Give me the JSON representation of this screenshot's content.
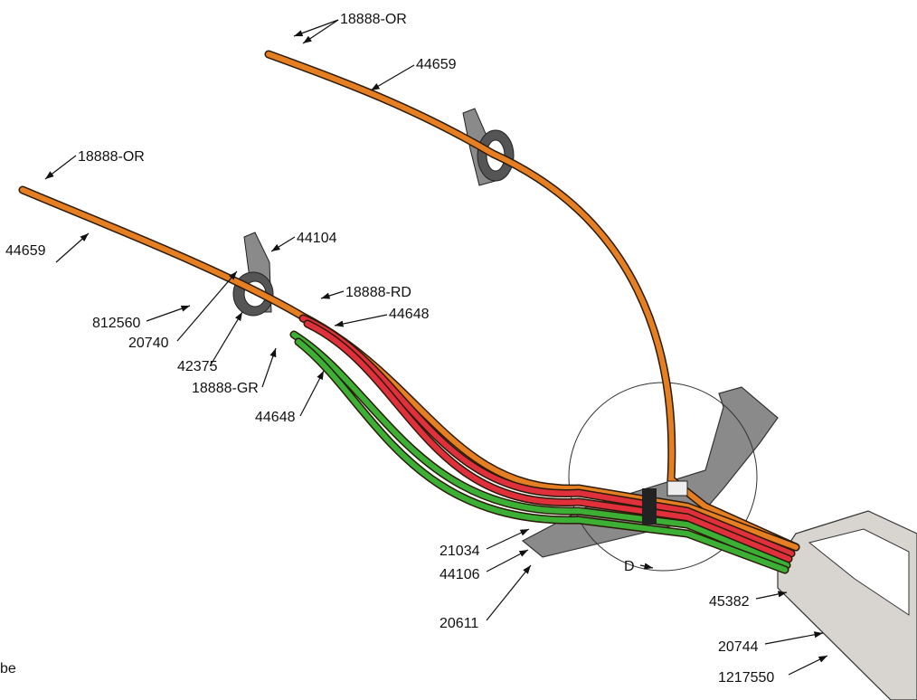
{
  "labels": [
    {
      "text": "18888-OR"
    },
    {
      "text": "44659"
    },
    {
      "text": "18888-OR"
    },
    {
      "text": "44659"
    },
    {
      "text": "44104"
    },
    {
      "text": "18888-RD"
    },
    {
      "text": "44648"
    },
    {
      "text": "812560"
    },
    {
      "text": "20740"
    },
    {
      "text": "42375"
    },
    {
      "text": "18888-GR"
    },
    {
      "text": "44648"
    },
    {
      "text": "21034"
    },
    {
      "text": "44106"
    },
    {
      "text": "20611"
    },
    {
      "text": "D"
    },
    {
      "text": "45382"
    },
    {
      "text": "20744"
    },
    {
      "text": "1217550"
    },
    {
      "text": "be"
    }
  ]
}
